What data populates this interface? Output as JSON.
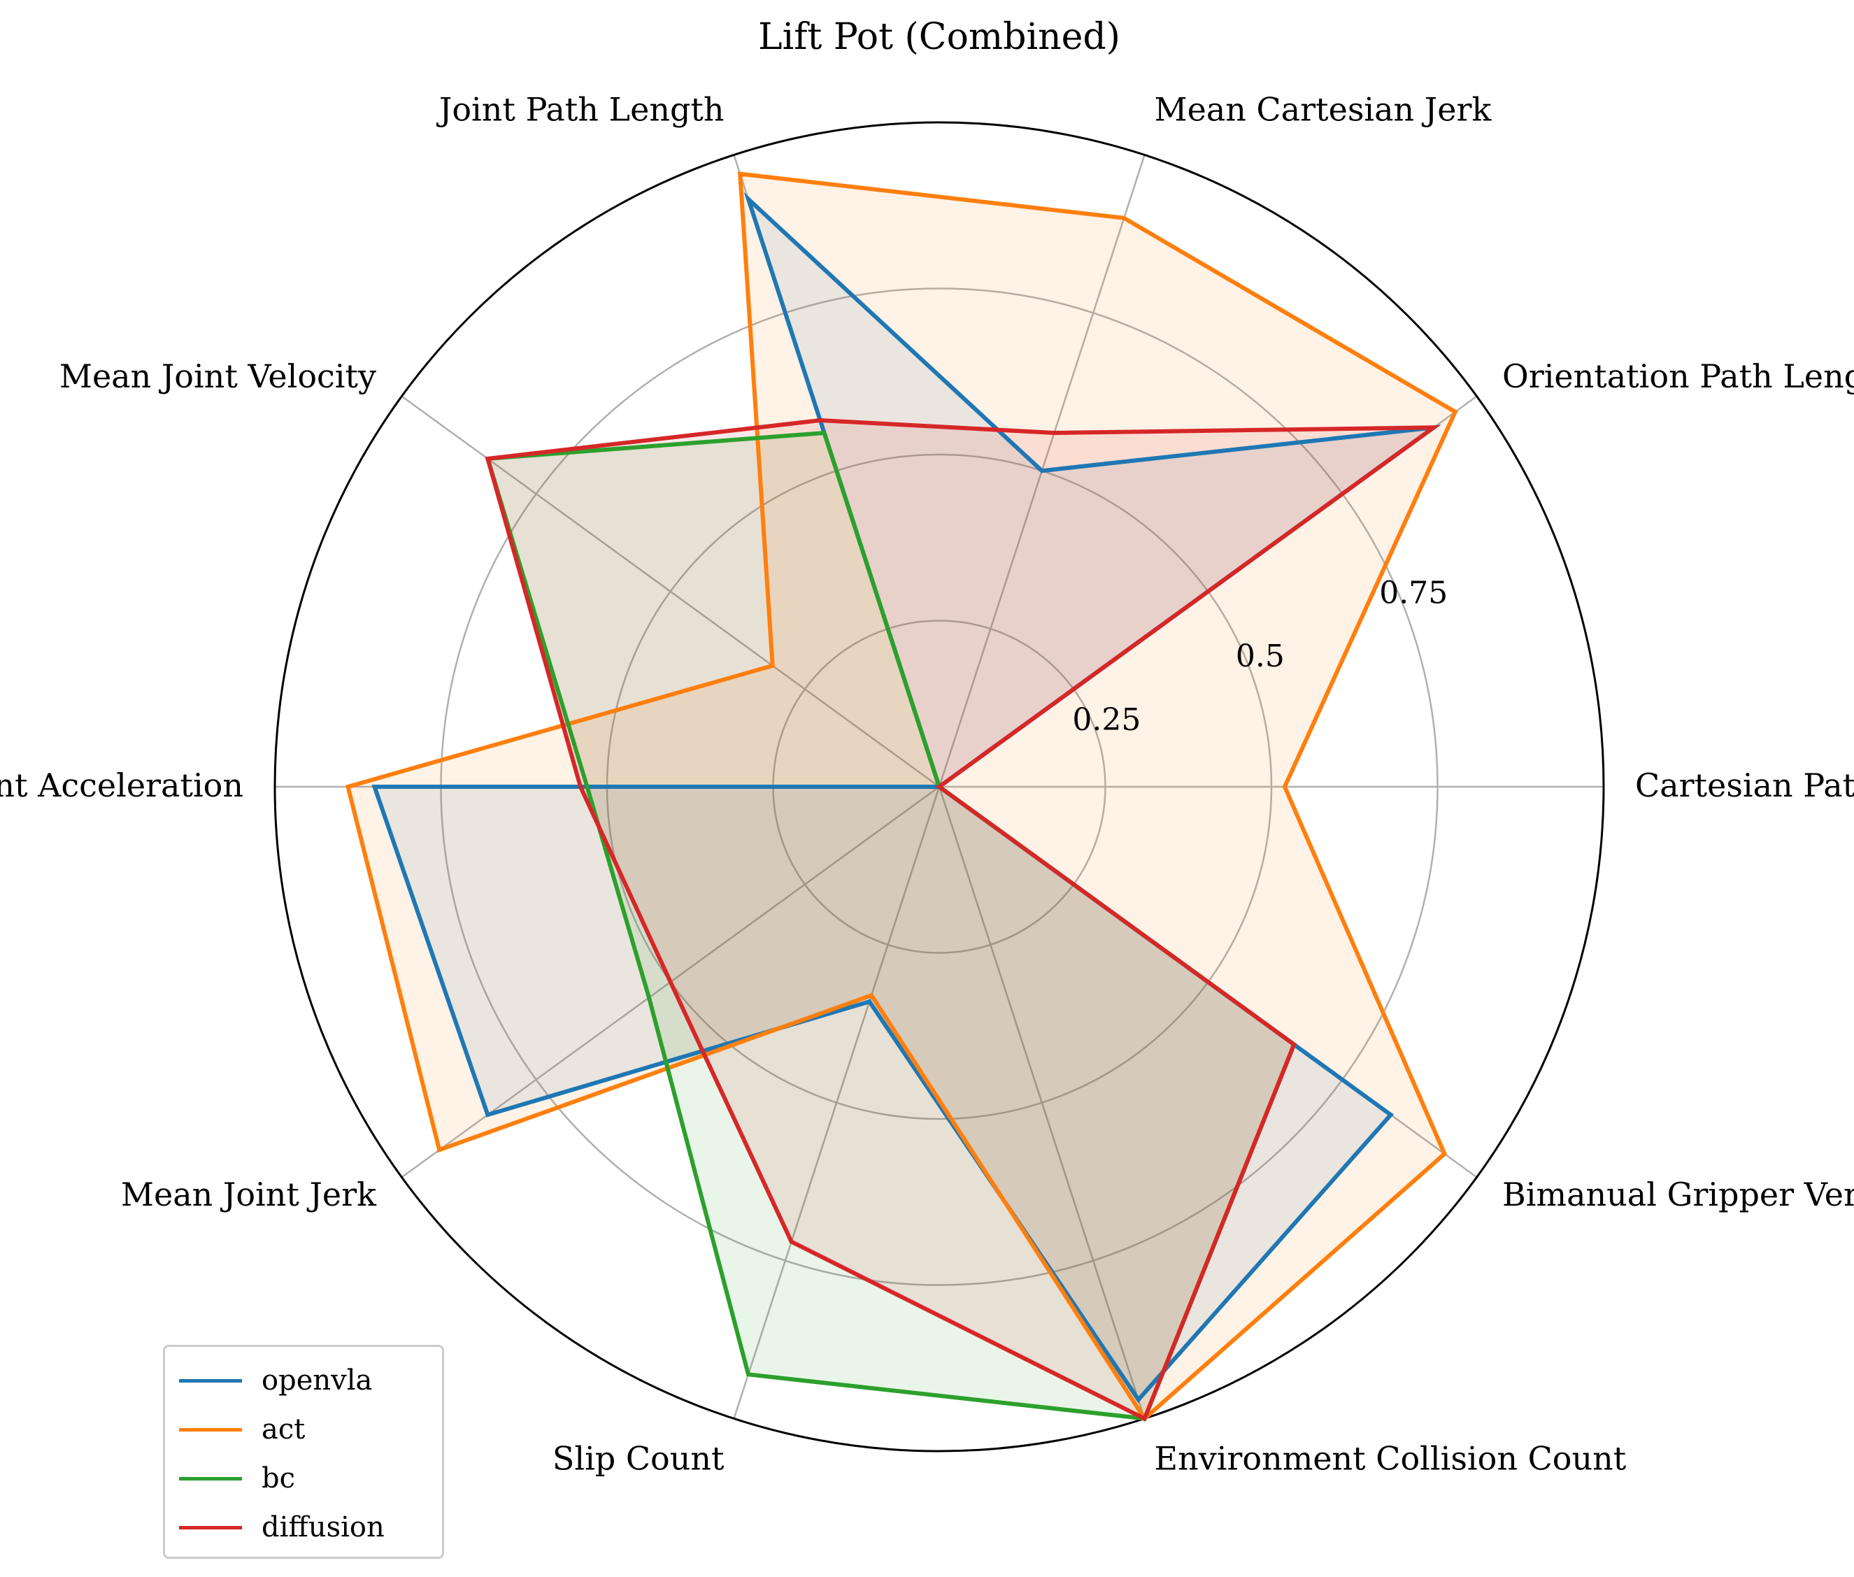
{
  "chart_data": {
    "type": "radar",
    "title": "Lift Pot (Combined)",
    "axes": [
      "Cartesian Path Length",
      "Orientation Path Length",
      "Mean Cartesian Jerk",
      "Joint Path Length",
      "Mean Joint Velocity",
      "Mean Joint Acceleration",
      "Mean Joint Jerk",
      "Slip Count",
      "Environment Collision Count",
      "Bimanual Gripper Vertical Difference"
    ],
    "radial_ticks": [
      "0.25",
      "0.5",
      "0.75"
    ],
    "radial_tick_values": [
      0.25,
      0.5,
      0.75
    ],
    "rlim": [
      0,
      1
    ],
    "grid": true,
    "legend_position": "lower-left",
    "series": [
      {
        "name": "openvla",
        "color": "#1f77b4",
        "values": [
          0.0,
          0.92,
          0.5,
          0.93,
          0.0,
          0.85,
          0.84,
          0.34,
          0.97,
          0.84
        ]
      },
      {
        "name": "act",
        "color": "#ff7f0e",
        "values": [
          0.52,
          0.96,
          0.9,
          0.97,
          0.31,
          0.89,
          0.93,
          0.33,
          1.0,
          0.94
        ]
      },
      {
        "name": "bc",
        "color": "#2ca02c",
        "values": [
          0.0,
          0.0,
          0.0,
          0.56,
          0.84,
          0.53,
          0.54,
          0.93,
          1.0,
          0.66
        ]
      },
      {
        "name": "diffusion",
        "color": "#d62728",
        "values": [
          0.0,
          0.92,
          0.56,
          0.58,
          0.84,
          0.54,
          0.5,
          0.72,
          1.0,
          0.66
        ]
      }
    ]
  }
}
